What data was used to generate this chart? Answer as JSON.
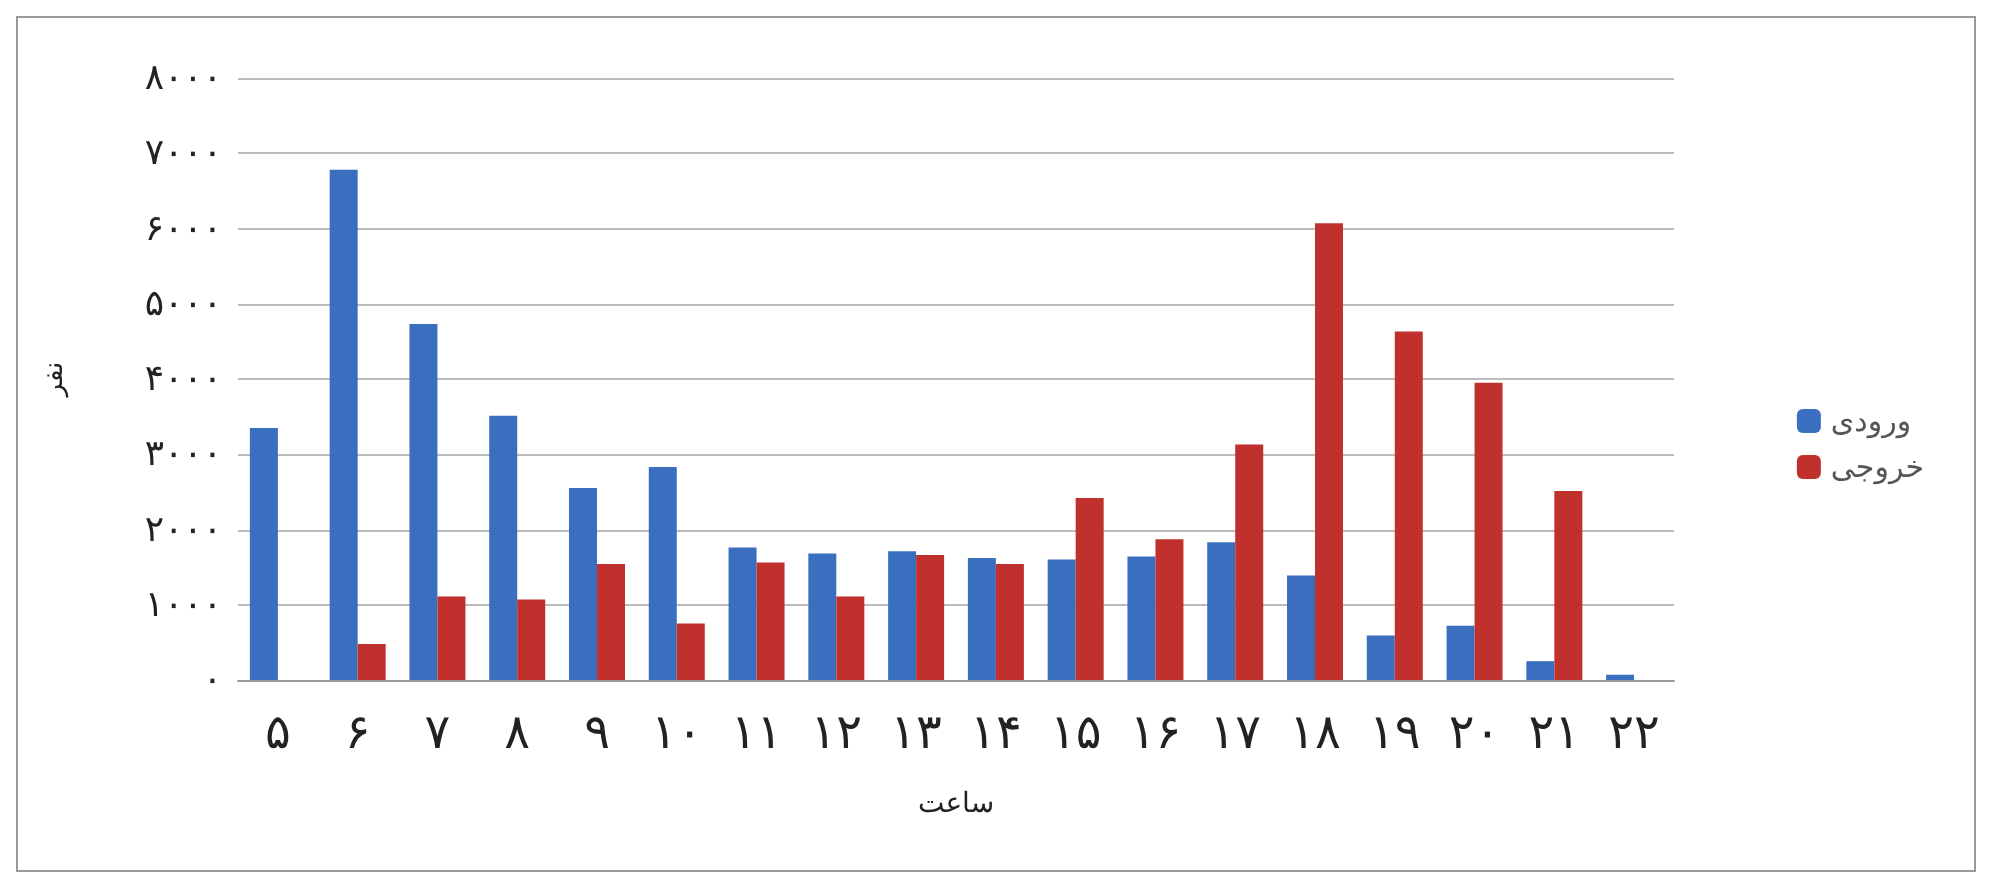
{
  "chart_data": {
    "type": "bar",
    "xlabel": "ساعت",
    "ylabel": "نفر",
    "categories": [
      "۵",
      "۶",
      "۷",
      "۸",
      "۹",
      "۱۰",
      "۱۱",
      "۱۲",
      "۱۳",
      "۱۴",
      "۱۵",
      "۱۶",
      "۱۷",
      "۱۸",
      "۱۹",
      "۲۰",
      "۲۱",
      "۲۲"
    ],
    "series": [
      {
        "name": "ورودی",
        "color": "#3a6fc0",
        "values": [
          3350,
          6780,
          4730,
          3510,
          2550,
          2830,
          1760,
          1680,
          1710,
          1620,
          1600,
          1640,
          1830,
          1390,
          590,
          720,
          250,
          70
        ]
      },
      {
        "name": "خروجی",
        "color": "#c0302c",
        "values": [
          null,
          480,
          1110,
          1070,
          1540,
          750,
          1560,
          1110,
          1660,
          1540,
          2420,
          1870,
          3130,
          6070,
          4630,
          3950,
          2510,
          null
        ]
      }
    ],
    "ylim": [
      0,
      8000
    ],
    "yticks": [
      {
        "value": 0,
        "label": "۰"
      },
      {
        "value": 1000,
        "label": "۱۰۰۰"
      },
      {
        "value": 2000,
        "label": "۲۰۰۰"
      },
      {
        "value": 3000,
        "label": "۳۰۰۰"
      },
      {
        "value": 4000,
        "label": "۴۰۰۰"
      },
      {
        "value": 5000,
        "label": "۵۰۰۰"
      },
      {
        "value": 6000,
        "label": "۶۰۰۰"
      },
      {
        "value": 7000,
        "label": "۷۰۰۰"
      },
      {
        "value": 8000,
        "label": "۸۰۰۰"
      }
    ],
    "grid": "y",
    "legend": "right"
  }
}
